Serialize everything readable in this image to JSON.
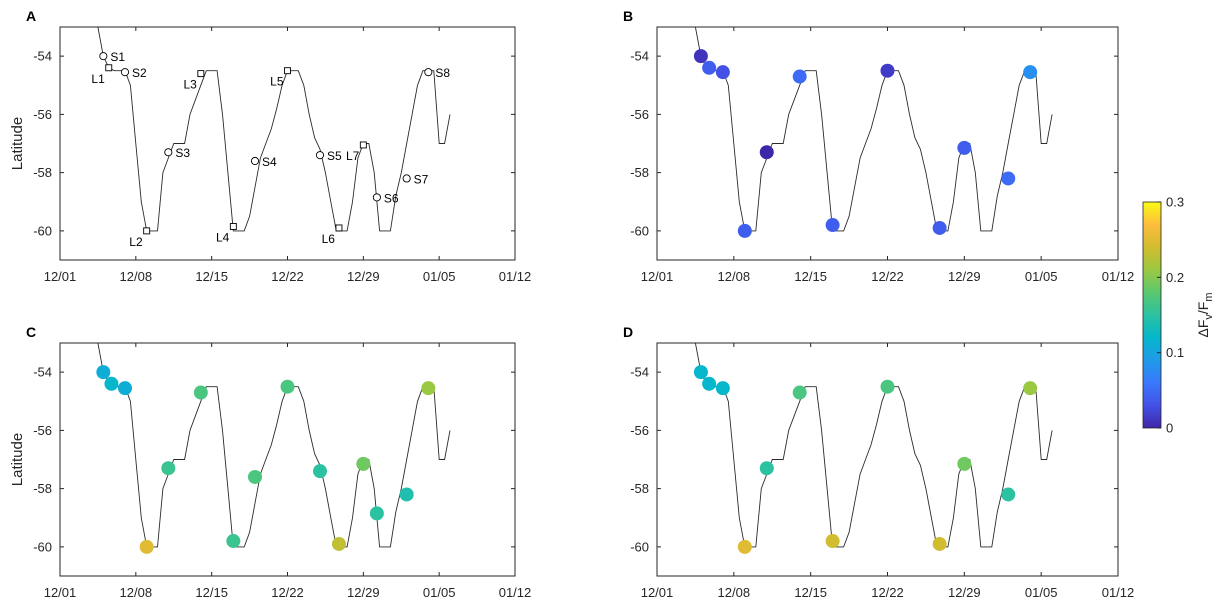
{
  "colorbar": {
    "label_main": "ΔF",
    "label_sub1": "v",
    "label_mid": "/F",
    "label_sub2": "m",
    "min": 0,
    "max": 0.3,
    "ticks": [
      0,
      0.1,
      0.2,
      0.3
    ],
    "tick_labels": [
      "0",
      "0.1",
      "0.2",
      "0.3"
    ],
    "colormap": [
      "#3e26a8",
      "#4351e6",
      "#3a78fc",
      "#1e9be8",
      "#06b6cb",
      "#2bc2a1",
      "#5bc86f",
      "#9bc842",
      "#d2bc2f",
      "#fdbd3d",
      "#f9fb15"
    ]
  },
  "chart_data": [
    {
      "panel": "A",
      "type": "line",
      "ylabel": "Latitude",
      "xlim": [
        "12/01",
        "01/12"
      ],
      "ylim": [
        -61,
        -53
      ],
      "x_ticks": [
        "12/01",
        "12/08",
        "12/15",
        "12/22",
        "12/29",
        "01/05",
        "01/12"
      ],
      "y_ticks": [
        -54,
        -56,
        -58,
        -60
      ],
      "y_tick_labels": [
        "-54",
        "-56",
        "-58",
        "-60"
      ],
      "track": [
        [
          "12/04 12:00",
          -53
        ],
        [
          "12/05 00:00",
          -54
        ],
        [
          "12/05 12:00",
          -54.4
        ],
        [
          "12/06 00:00",
          -54.5
        ],
        [
          "12/07 00:00",
          -54.5
        ],
        [
          "12/07 12:00",
          -55
        ],
        [
          "12/08 00:00",
          -57
        ],
        [
          "12/08 12:00",
          -59
        ],
        [
          "12/09 00:00",
          -60
        ],
        [
          "12/10 00:00",
          -60
        ],
        [
          "12/10 12:00",
          -58
        ],
        [
          "12/11 00:00",
          -57.5
        ],
        [
          "12/11 12:00",
          -57
        ],
        [
          "12/12 12:00",
          -57
        ],
        [
          "12/13 00:00",
          -56
        ],
        [
          "12/13 12:00",
          -55.5
        ],
        [
          "12/14 00:00",
          -55
        ],
        [
          "12/14 12:00",
          -54.5
        ],
        [
          "12/15 12:00",
          -54.5
        ],
        [
          "12/16 00:00",
          -56
        ],
        [
          "12/16 12:00",
          -58
        ],
        [
          "12/17 00:00",
          -60
        ],
        [
          "12/18 00:00",
          -60
        ],
        [
          "12/18 12:00",
          -59.5
        ],
        [
          "12/19 00:00",
          -58.5
        ],
        [
          "12/19 12:00",
          -57.5
        ],
        [
          "12/20 00:00",
          -57
        ],
        [
          "12/20 12:00",
          -56.5
        ],
        [
          "12/21 00:00",
          -55.8
        ],
        [
          "12/21 12:00",
          -55
        ],
        [
          "12/22 00:00",
          -54.5
        ],
        [
          "12/23 00:00",
          -54.5
        ],
        [
          "12/23 12:00",
          -55
        ],
        [
          "12/24 00:00",
          -56
        ],
        [
          "12/24 12:00",
          -56.8
        ],
        [
          "12/25 00:00",
          -57.2
        ],
        [
          "12/25 12:00",
          -58
        ],
        [
          "12/26 00:00",
          -59
        ],
        [
          "12/26 12:00",
          -60
        ],
        [
          "12/27 12:00",
          -60
        ],
        [
          "12/28 00:00",
          -59
        ],
        [
          "12/28 12:00",
          -57.5
        ],
        [
          "12/29 00:00",
          -57
        ],
        [
          "12/29 12:00",
          -57
        ],
        [
          "12/30 00:00",
          -58
        ],
        [
          "12/30 12:00",
          -60
        ],
        [
          "12/31 12:00",
          -60
        ],
        [
          "01/01 00:00",
          -58.8
        ],
        [
          "01/01 12:00",
          -58
        ],
        [
          "01/02 00:00",
          -57
        ],
        [
          "01/02 12:00",
          -56
        ],
        [
          "01/03 00:00",
          -55
        ],
        [
          "01/03 12:00",
          -54.5
        ],
        [
          "01/04 12:00",
          -54.5
        ],
        [
          "01/05 00:00",
          -57
        ],
        [
          "01/05 12:00",
          -57
        ],
        [
          "01/06 00:00",
          -56
        ]
      ],
      "stations": [
        {
          "label": "S1",
          "x": "12/05 00:00",
          "y": -54.0
        },
        {
          "label": "S2",
          "x": "12/07 00:00",
          "y": -54.55
        },
        {
          "label": "S3",
          "x": "12/11 00:00",
          "y": -57.3
        },
        {
          "label": "S4",
          "x": "12/19 00:00",
          "y": -57.6
        },
        {
          "label": "S5",
          "x": "12/25 00:00",
          "y": -57.4
        },
        {
          "label": "S6",
          "x": "12/30 06:00",
          "y": -58.85
        },
        {
          "label": "S7",
          "x": "01/02 00:00",
          "y": -58.2
        },
        {
          "label": "S8",
          "x": "01/04 00:00",
          "y": -54.55
        }
      ],
      "lagrangian": [
        {
          "label": "L1",
          "x": "12/05 12:00",
          "y": -54.4
        },
        {
          "label": "L2",
          "x": "12/09 00:00",
          "y": -60.0
        },
        {
          "label": "L3",
          "x": "12/14 00:00",
          "y": -54.6
        },
        {
          "label": "L4",
          "x": "12/17 00:00",
          "y": -59.85
        },
        {
          "label": "L5",
          "x": "12/22 00:00",
          "y": -54.5
        },
        {
          "label": "L6",
          "x": "12/26 18:00",
          "y": -59.9
        },
        {
          "label": "L7",
          "x": "12/29 00:00",
          "y": -57.05
        }
      ]
    },
    {
      "panel": "B",
      "type": "scatter",
      "ylabel": "",
      "xlim": [
        "12/01",
        "01/12"
      ],
      "ylim": [
        -61,
        -53
      ],
      "x_ticks": [
        "12/01",
        "12/08",
        "12/15",
        "12/22",
        "12/29",
        "01/05",
        "01/12"
      ],
      "y_ticks": [
        -54,
        -56,
        -58,
        -60
      ],
      "y_tick_labels": [
        "-54",
        "-56",
        "-58",
        "-60"
      ],
      "points": [
        {
          "x": "12/05 00:00",
          "y": -54.0,
          "value": 0.01
        },
        {
          "x": "12/05 18:00",
          "y": -54.4,
          "value": 0.04
        },
        {
          "x": "12/07 00:00",
          "y": -54.55,
          "value": 0.03
        },
        {
          "x": "12/09 00:00",
          "y": -60.0,
          "value": 0.04
        },
        {
          "x": "12/11 00:00",
          "y": -57.3,
          "value": 0.0
        },
        {
          "x": "12/14 00:00",
          "y": -54.7,
          "value": 0.05
        },
        {
          "x": "12/17 00:00",
          "y": -59.8,
          "value": 0.04
        },
        {
          "x": "12/22 00:00",
          "y": -54.5,
          "value": 0.015
        },
        {
          "x": "12/26 18:00",
          "y": -59.9,
          "value": 0.04
        },
        {
          "x": "12/29 00:00",
          "y": -57.15,
          "value": 0.04
        },
        {
          "x": "01/02 00:00",
          "y": -58.2,
          "value": 0.05
        },
        {
          "x": "01/04 00:00",
          "y": -54.55,
          "value": 0.08
        }
      ]
    },
    {
      "panel": "C",
      "type": "scatter",
      "ylabel": "Latitude",
      "xlim": [
        "12/01",
        "01/12"
      ],
      "ylim": [
        -61,
        -53
      ],
      "x_ticks": [
        "12/01",
        "12/08",
        "12/15",
        "12/22",
        "12/29",
        "01/05",
        "01/12"
      ],
      "y_ticks": [
        -54,
        -56,
        -58,
        -60
      ],
      "y_tick_labels": [
        "-54",
        "-56",
        "-58",
        "-60"
      ],
      "points": [
        {
          "x": "12/05 00:00",
          "y": -54.0,
          "value": 0.11
        },
        {
          "x": "12/05 18:00",
          "y": -54.4,
          "value": 0.12
        },
        {
          "x": "12/07 00:00",
          "y": -54.55,
          "value": 0.11
        },
        {
          "x": "12/09 00:00",
          "y": -60.0,
          "value": 0.25
        },
        {
          "x": "12/11 00:00",
          "y": -57.3,
          "value": 0.16
        },
        {
          "x": "12/14 00:00",
          "y": -54.7,
          "value": 0.17
        },
        {
          "x": "12/17 00:00",
          "y": -59.8,
          "value": 0.16
        },
        {
          "x": "12/19 00:00",
          "y": -57.6,
          "value": 0.17
        },
        {
          "x": "12/22 00:00",
          "y": -54.5,
          "value": 0.17
        },
        {
          "x": "12/25 00:00",
          "y": -57.4,
          "value": 0.15
        },
        {
          "x": "12/26 18:00",
          "y": -59.9,
          "value": 0.23
        },
        {
          "x": "12/29 00:00",
          "y": -57.15,
          "value": 0.19
        },
        {
          "x": "12/30 06:00",
          "y": -58.85,
          "value": 0.15
        },
        {
          "x": "01/02 00:00",
          "y": -58.2,
          "value": 0.14
        },
        {
          "x": "01/04 00:00",
          "y": -54.55,
          "value": 0.21
        }
      ]
    },
    {
      "panel": "D",
      "type": "scatter",
      "ylabel": "",
      "xlim": [
        "12/01",
        "01/12"
      ],
      "ylim": [
        -61,
        -53
      ],
      "x_ticks": [
        "12/01",
        "12/08",
        "12/15",
        "12/22",
        "12/29",
        "01/05",
        "01/12"
      ],
      "y_ticks": [
        -54,
        -56,
        -58,
        -60
      ],
      "y_tick_labels": [
        "-54",
        "-56",
        "-58",
        "-60"
      ],
      "points": [
        {
          "x": "12/05 00:00",
          "y": -54.0,
          "value": 0.12
        },
        {
          "x": "12/05 18:00",
          "y": -54.4,
          "value": 0.12
        },
        {
          "x": "12/07 00:00",
          "y": -54.55,
          "value": 0.12
        },
        {
          "x": "12/09 00:00",
          "y": -60.0,
          "value": 0.25
        },
        {
          "x": "12/11 00:00",
          "y": -57.3,
          "value": 0.15
        },
        {
          "x": "12/14 00:00",
          "y": -54.7,
          "value": 0.17
        },
        {
          "x": "12/17 00:00",
          "y": -59.8,
          "value": 0.24
        },
        {
          "x": "12/22 00:00",
          "y": -54.5,
          "value": 0.17
        },
        {
          "x": "12/26 18:00",
          "y": -59.9,
          "value": 0.24
        },
        {
          "x": "12/29 00:00",
          "y": -57.15,
          "value": 0.19
        },
        {
          "x": "01/02 00:00",
          "y": -58.2,
          "value": 0.15
        },
        {
          "x": "01/04 00:00",
          "y": -54.55,
          "value": 0.21
        }
      ]
    }
  ]
}
